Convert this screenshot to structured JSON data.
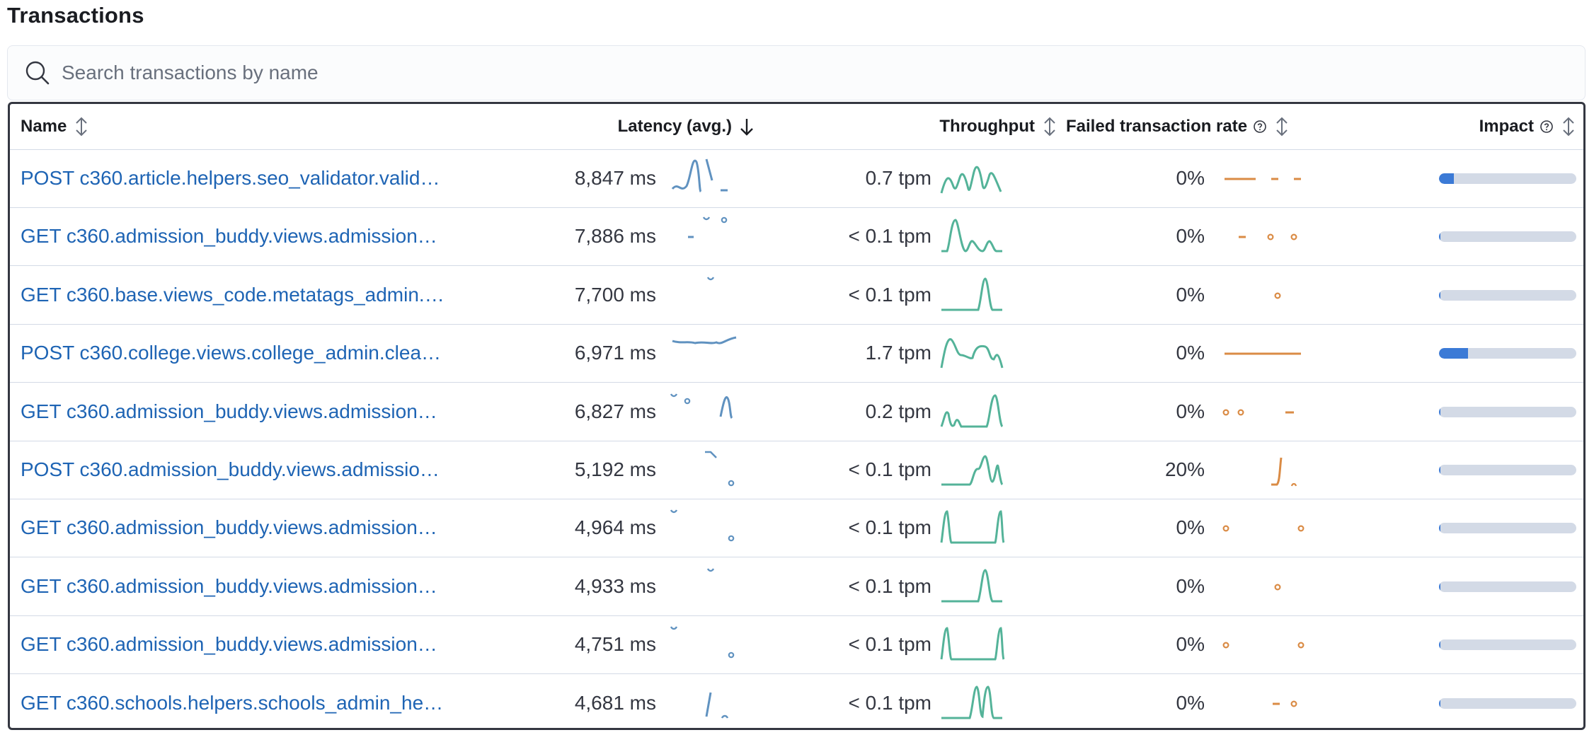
{
  "title": "Transactions",
  "search": {
    "placeholder": "Search transactions by name",
    "icon": "search-icon"
  },
  "columns": {
    "name": "Name",
    "latency": "Latency (avg.)",
    "throughput": "Throughput",
    "failed": "Failed transaction rate",
    "impact": "Impact"
  },
  "colors": {
    "latency_series": "#6092c0",
    "throughput_series": "#54b399",
    "failed_series": "#da8b45",
    "impact_fill": "#3b7ad6",
    "impact_track": "#d3dae6",
    "link": "#1e64b4"
  },
  "rows": [
    {
      "name": "POST c360.article.helpers.seo_validator.valid…",
      "latency": "8,847 ms",
      "throughput": "0.7 tpm",
      "failed_rate": "0%",
      "impact": 0.11
    },
    {
      "name": "GET c360.admission_buddy.views.admission…",
      "latency": "7,886 ms",
      "throughput": "< 0.1 tpm",
      "failed_rate": "0%",
      "impact": 0.01
    },
    {
      "name": "GET c360.base.views_code.metatags_admin.…",
      "latency": "7,700 ms",
      "throughput": "< 0.1 tpm",
      "failed_rate": "0%",
      "impact": 0.0
    },
    {
      "name": "POST c360.college.views.college_admin.clea…",
      "latency": "6,971 ms",
      "throughput": "1.7 tpm",
      "failed_rate": "0%",
      "impact": 0.21
    },
    {
      "name": "GET c360.admission_buddy.views.admission…",
      "latency": "6,827 ms",
      "throughput": "0.2 tpm",
      "failed_rate": "0%",
      "impact": 0.01
    },
    {
      "name": "POST c360.admission_buddy.views.admissio…",
      "latency": "5,192 ms",
      "throughput": "< 0.1 tpm",
      "failed_rate": "20%",
      "impact": 0.0
    },
    {
      "name": "GET c360.admission_buddy.views.admission…",
      "latency": "4,964 ms",
      "throughput": "< 0.1 tpm",
      "failed_rate": "0%",
      "impact": 0.0
    },
    {
      "name": "GET c360.admission_buddy.views.admission…",
      "latency": "4,933 ms",
      "throughput": "< 0.1 tpm",
      "failed_rate": "0%",
      "impact": 0.0
    },
    {
      "name": "GET c360.admission_buddy.views.admission…",
      "latency": "4,751 ms",
      "throughput": "< 0.1 tpm",
      "failed_rate": "0%",
      "impact": 0.0
    },
    {
      "name": "GET c360.schools.helpers.schools_admin_he…",
      "latency": "4,681 ms",
      "throughput": "< 0.1 tpm",
      "failed_rate": "0%",
      "impact": 0.0
    }
  ]
}
